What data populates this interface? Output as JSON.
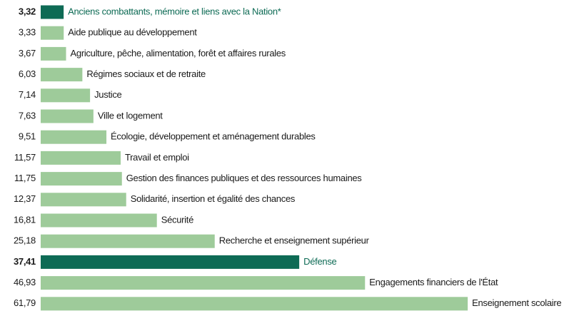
{
  "chart_data": {
    "type": "bar",
    "orientation": "horizontal",
    "categories": [
      "Anciens combattants, mémoire et liens avec la Nation*",
      "Aide publique au développement",
      "Agriculture, pêche, alimentation, forêt et affaires rurales",
      "Régimes sociaux et de retraite",
      "Justice",
      "Ville et logement",
      "Écologie, développement et aménagement durables",
      "Travail et emploi",
      "Gestion des finances publiques et des ressources humaines",
      "Solidarité, insertion et égalité des chances",
      "Sécurité",
      "Recherche et enseignement supérieur",
      "Défense",
      "Engagements financiers de l'État",
      "Enseignement scolaire"
    ],
    "values": [
      3.32,
      3.33,
      3.67,
      6.03,
      7.14,
      7.63,
      9.51,
      11.57,
      11.75,
      12.37,
      16.81,
      25.18,
      37.41,
      46.93,
      61.79
    ],
    "value_labels": [
      "3,32",
      "3,33",
      "3,67",
      "6,03",
      "7,14",
      "7,63",
      "9,51",
      "11,57",
      "11,75",
      "12,37",
      "16,81",
      "25,18",
      "37,41",
      "46,93",
      "61,79"
    ],
    "color": "#9ecb9a",
    "colors": [
      "#0e6b55",
      "#9ecb9a",
      "#9ecb9a",
      "#9ecb9a",
      "#9ecb9a",
      "#9ecb9a",
      "#9ecb9a",
      "#9ecb9a",
      "#9ecb9a",
      "#9ecb9a",
      "#9ecb9a",
      "#9ecb9a",
      "#0e6b55",
      "#9ecb9a",
      "#9ecb9a"
    ]
  }
}
